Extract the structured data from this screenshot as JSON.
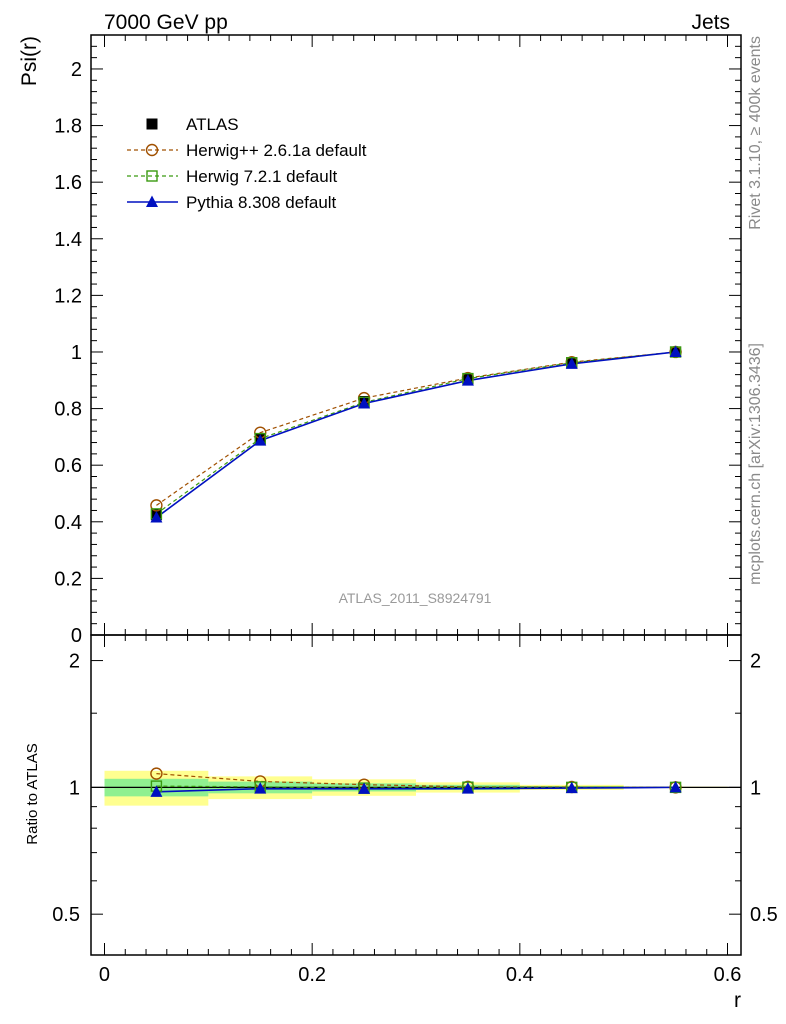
{
  "header": {
    "left": "7000 GeV pp",
    "right": "Jets"
  },
  "side_labels": {
    "top": "Rivet 3.1.10, ≥ 400k events",
    "bottom": "mcplots.cern.ch [arXiv:1306.3436]"
  },
  "watermark": "ATLAS_2011_S8924791",
  "colors": {
    "data": "#000000",
    "herwigpp": "#a05000",
    "herwig7": "#3a9a10",
    "pythia": "#0010c0",
    "band_inner": "#90f090",
    "band_outer": "#ffff90"
  },
  "chart_data": [
    {
      "type": "line",
      "panel": "main",
      "ylabel": "Psi(r)",
      "xlim": [
        -0.013,
        0.613
      ],
      "ylim": [
        0,
        2.12
      ],
      "yticks_major": [
        0,
        0.2,
        0.4,
        0.6,
        0.8,
        1,
        1.2,
        1.4,
        1.6,
        1.8,
        2
      ],
      "ytick_labels": [
        "0",
        "0.2",
        "0.4",
        "0.6",
        "0.8",
        "1",
        "1.2",
        "1.4",
        "1.6",
        "1.8",
        "2"
      ],
      "x": [
        0.05,
        0.15,
        0.25,
        0.35,
        0.45,
        0.55
      ],
      "legend": [
        "ATLAS",
        "Herwig++ 2.6.1a default",
        "Herwig 7.2.1 default",
        "Pythia 8.308 default"
      ],
      "series": [
        {
          "name": "ATLAS",
          "key": "data",
          "style": "marker",
          "values": [
            0.425,
            0.692,
            0.825,
            0.905,
            0.962,
            1.0
          ]
        },
        {
          "name": "Herwig++ 2.6.1a default",
          "key": "herwigpp",
          "style": "dashed",
          "values": [
            0.458,
            0.715,
            0.837,
            0.908,
            0.964,
            1.0
          ]
        },
        {
          "name": "Herwig 7.2.1 default",
          "key": "herwig7",
          "style": "dashed",
          "values": [
            0.428,
            0.694,
            0.822,
            0.906,
            0.962,
            1.0
          ]
        },
        {
          "name": "Pythia 8.308 default",
          "key": "pythia",
          "style": "solid",
          "values": [
            0.415,
            0.687,
            0.818,
            0.899,
            0.958,
            1.0
          ]
        }
      ]
    },
    {
      "type": "line",
      "panel": "ratio",
      "xlabel": "r",
      "ylabel": "Ratio to ATLAS",
      "xlim": [
        -0.013,
        0.613
      ],
      "ylim": [
        0.4,
        2.3
      ],
      "yscale": "log",
      "yticks_major": [
        0.5,
        1,
        2
      ],
      "ytick_labels": [
        "0.5",
        "1",
        "2"
      ],
      "xticks_major": [
        0,
        0.2,
        0.4,
        0.6
      ],
      "xtick_labels": [
        "0",
        "0.2",
        "0.4",
        "0.6"
      ],
      "x": [
        0.05,
        0.15,
        0.25,
        0.35,
        0.45,
        0.55
      ],
      "bins": [
        [
          0.0,
          0.1
        ],
        [
          0.1,
          0.2
        ],
        [
          0.2,
          0.3
        ],
        [
          0.3,
          0.4
        ],
        [
          0.4,
          0.5
        ],
        [
          0.5,
          0.6
        ]
      ],
      "band_inner": [
        [
          0.952,
          1.048
        ],
        [
          0.968,
          1.032
        ],
        [
          0.978,
          1.022
        ],
        [
          0.986,
          1.014
        ],
        [
          0.993,
          1.007
        ],
        [
          0.998,
          1.002
        ]
      ],
      "band_outer": [
        [
          0.905,
          1.095
        ],
        [
          0.938,
          1.062
        ],
        [
          0.955,
          1.045
        ],
        [
          0.972,
          1.028
        ],
        [
          0.986,
          1.014
        ],
        [
          0.996,
          1.004
        ]
      ],
      "series": [
        {
          "name": "Herwig++ 2.6.1a default",
          "key": "herwigpp",
          "style": "dashed",
          "values": [
            1.078,
            1.033,
            1.015,
            1.003,
            1.002,
            1.0
          ]
        },
        {
          "name": "Herwig 7.2.1 default",
          "key": "herwig7",
          "style": "dashed",
          "values": [
            1.007,
            1.003,
            0.996,
            1.001,
            1.0,
            1.0
          ]
        },
        {
          "name": "Pythia 8.308 default",
          "key": "pythia",
          "style": "solid",
          "values": [
            0.976,
            0.993,
            0.992,
            0.993,
            0.996,
            1.0
          ]
        }
      ]
    }
  ]
}
